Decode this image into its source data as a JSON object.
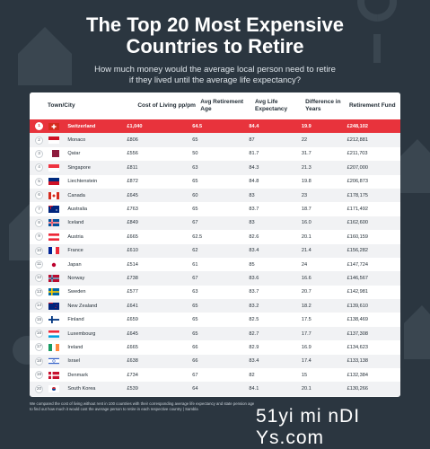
{
  "header": {
    "title_line1": "The Top 20 Most Expensive",
    "title_line2": "Countries to Retire",
    "subtitle_line1": "How much money would the average local person need to retire",
    "subtitle_line2": "if they lived until the average life expectancy?"
  },
  "table": {
    "headers": {
      "town": "Town/City",
      "cost": "Cost of Living pp/pm",
      "retire": "Avg Retirement Age",
      "life": "Avg Life Expectancy",
      "diff": "Difference in Years",
      "fund": "Retirement Fund"
    },
    "rows": [
      {
        "rank": "1",
        "country": "Switzerland",
        "cost": "£1,040",
        "retire": "64.5",
        "life": "84.4",
        "diff": "19.9",
        "fund": "£248,102",
        "flag": "switzerland"
      },
      {
        "rank": "2",
        "country": "Monaco",
        "cost": "£806",
        "retire": "65",
        "life": "87",
        "diff": "22",
        "fund": "£212,881",
        "flag": "monaco"
      },
      {
        "rank": "3",
        "country": "Qatar",
        "cost": "£556",
        "retire": "50",
        "life": "81.7",
        "diff": "31.7",
        "fund": "£211,703",
        "flag": "qatar"
      },
      {
        "rank": "4",
        "country": "Singapore",
        "cost": "£811",
        "retire": "63",
        "life": "84.3",
        "diff": "21.3",
        "fund": "£207,000",
        "flag": "singapore"
      },
      {
        "rank": "5",
        "country": "Liechtenstein",
        "cost": "£872",
        "retire": "65",
        "life": "84.8",
        "diff": "19.8",
        "fund": "£206,873",
        "flag": "liechtenstein"
      },
      {
        "rank": "6",
        "country": "Canada",
        "cost": "£645",
        "retire": "60",
        "life": "83",
        "diff": "23",
        "fund": "£178,175",
        "flag": "canada"
      },
      {
        "rank": "7",
        "country": "Australia",
        "cost": "£763",
        "retire": "65",
        "life": "83.7",
        "diff": "18.7",
        "fund": "£171,492",
        "flag": "australia"
      },
      {
        "rank": "8",
        "country": "Iceland",
        "cost": "£849",
        "retire": "67",
        "life": "83",
        "diff": "16.0",
        "fund": "£162,600",
        "flag": "iceland"
      },
      {
        "rank": "9",
        "country": "Austria",
        "cost": "£665",
        "retire": "62.5",
        "life": "82.6",
        "diff": "20.1",
        "fund": "£160,159",
        "flag": "austria"
      },
      {
        "rank": "10",
        "country": "France",
        "cost": "£610",
        "retire": "62",
        "life": "83.4",
        "diff": "21.4",
        "fund": "£156,282",
        "flag": "france"
      },
      {
        "rank": "11",
        "country": "Japan",
        "cost": "£514",
        "retire": "61",
        "life": "85",
        "diff": "24",
        "fund": "£147,724",
        "flag": "japan"
      },
      {
        "rank": "12",
        "country": "Norway",
        "cost": "£738",
        "retire": "67",
        "life": "83.6",
        "diff": "16.6",
        "fund": "£146,567",
        "flag": "norway"
      },
      {
        "rank": "13",
        "country": "Sweden",
        "cost": "£577",
        "retire": "63",
        "life": "83.7",
        "diff": "20.7",
        "fund": "£142,981",
        "flag": "sweden"
      },
      {
        "rank": "14",
        "country": "New Zealand",
        "cost": "£641",
        "retire": "65",
        "life": "83.2",
        "diff": "18.2",
        "fund": "£139,610",
        "flag": "newzealand"
      },
      {
        "rank": "15",
        "country": "Finland",
        "cost": "£659",
        "retire": "65",
        "life": "82.5",
        "diff": "17.5",
        "fund": "£138,469",
        "flag": "finland"
      },
      {
        "rank": "16",
        "country": "Luxembourg",
        "cost": "£645",
        "retire": "65",
        "life": "82.7",
        "diff": "17.7",
        "fund": "£137,308",
        "flag": "luxembourg"
      },
      {
        "rank": "17",
        "country": "Ireland",
        "cost": "£665",
        "retire": "66",
        "life": "82.9",
        "diff": "16.9",
        "fund": "£134,623",
        "flag": "ireland"
      },
      {
        "rank": "18",
        "country": "Israel",
        "cost": "£638",
        "retire": "66",
        "life": "83.4",
        "diff": "17.4",
        "fund": "£133,138",
        "flag": "israel"
      },
      {
        "rank": "19",
        "country": "Denmark",
        "cost": "£734",
        "retire": "67",
        "life": "82",
        "diff": "15",
        "fund": "£132,384",
        "flag": "denmark"
      },
      {
        "rank": "20",
        "country": "South Korea",
        "cost": "£539",
        "retire": "64",
        "life": "84.1",
        "diff": "20.1",
        "fund": "£130,266",
        "flag": "southkorea"
      }
    ]
  },
  "footnote_line1": "We compared the cost of living without rent in 100 countries with their corresponding average life expectancy and state pension age",
  "footnote_line2": "to find out how much it would cost the average person to retire in each respective country | Sambla",
  "brand": "Sambla",
  "watermark": "51yi mi nDI Ys.com",
  "colors": {
    "background": "#2b3640",
    "highlight": "#e8333c",
    "row_alt": "#f1f2f4"
  }
}
